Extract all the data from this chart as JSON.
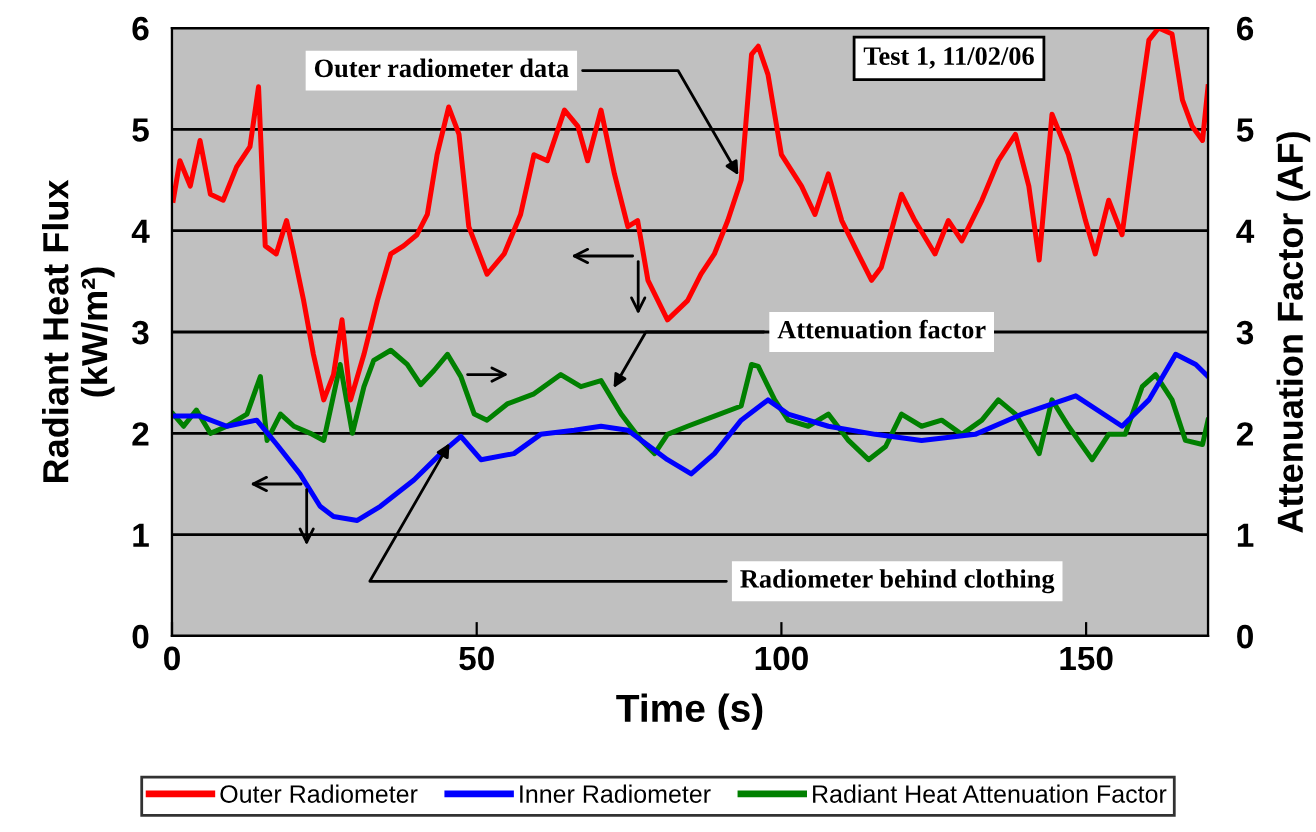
{
  "chart_data": {
    "type": "line",
    "xlabel": "Time (s)",
    "ylabel": "Radiant Heat Flux\n(kW/m²)",
    "y2label": "Attenuation Factor (AF)",
    "xlim": [
      0,
      170
    ],
    "xticks": [
      0,
      50,
      100,
      150
    ],
    "ylim": [
      0,
      6
    ],
    "yticks": [
      0,
      1,
      2,
      3,
      4,
      5,
      6
    ],
    "y2lim": [
      0,
      6
    ],
    "y2ticks": [
      0,
      1,
      2,
      3,
      4,
      5,
      6
    ],
    "grid": "y",
    "legend": "bottom",
    "marker": "none",
    "line_style": "solid",
    "annotations": [
      {
        "text": "Outer radiometer data",
        "x": 93.4,
        "y": 4.5
      },
      "Test 1, 11/02/06",
      {
        "text": "Attenuation factor",
        "x": 72,
        "y": 2.4
      },
      {
        "text": "Radiometer behind clothing",
        "x": 46,
        "y": 1.95
      }
    ],
    "series": [
      {
        "name": "Outer Radiometer",
        "color": "#ff0000",
        "x": [
          0.2,
          1.3,
          3,
          4.6,
          6.3,
          8.4,
          10.6,
          12.8,
          14.2,
          15.3,
          17.1,
          18.8,
          20,
          21.6,
          23.2,
          24.9,
          26.5,
          27.9,
          29.3,
          31.5,
          33.7,
          35.9,
          38,
          40.2,
          41.9,
          43.5,
          45.4,
          47.1,
          48.7,
          51.7,
          54.5,
          57.2,
          59.4,
          61.6,
          64.4,
          66.6,
          68.2,
          70.4,
          72.6,
          74.8,
          76.4,
          78.1,
          81.3,
          84.6,
          86.8,
          89,
          91.2,
          93.4,
          95.1,
          96.2,
          97.8,
          100,
          103.3,
          105.5,
          107.7,
          109.9,
          112.6,
          114.8,
          116.4,
          119.7,
          121.9,
          125.2,
          127.4,
          129.6,
          132.9,
          135.6,
          138.4,
          140.6,
          142.3,
          144.4,
          147.1,
          149.9,
          151.5,
          153.7,
          155.9,
          158.1,
          160.3,
          161.9,
          164.1,
          165.8,
          167.4,
          169.1,
          170
        ],
        "values": [
          4.3,
          4.69,
          4.44,
          4.89,
          4.36,
          4.3,
          4.63,
          4.83,
          5.42,
          3.85,
          3.77,
          4.1,
          3.77,
          3.31,
          2.78,
          2.33,
          2.58,
          3.12,
          2.33,
          2.78,
          3.31,
          3.77,
          3.85,
          3.96,
          4.16,
          4.75,
          5.22,
          4.95,
          4.04,
          3.57,
          3.77,
          4.16,
          4.75,
          4.69,
          5.19,
          5.03,
          4.69,
          5.19,
          4.56,
          4.04,
          4.1,
          3.51,
          3.12,
          3.31,
          3.57,
          3.77,
          4.1,
          4.5,
          5.74,
          5.82,
          5.54,
          4.75,
          4.44,
          4.16,
          4.56,
          4.1,
          3.77,
          3.51,
          3.64,
          4.36,
          4.1,
          3.77,
          4.1,
          3.9,
          4.3,
          4.69,
          4.95,
          4.44,
          3.71,
          5.15,
          4.75,
          4.1,
          3.77,
          4.3,
          3.96,
          4.95,
          5.88,
          6.0,
          5.94,
          5.29,
          5.03,
          4.89,
          5.42
        ]
      },
      {
        "name": "Inner Radiometer",
        "color": "#0000ff",
        "x": [
          0.2,
          4.6,
          9,
          13.9,
          17.2,
          21,
          24.3,
          26.5,
          30.4,
          34.2,
          39.7,
          44.1,
          47.4,
          50.7,
          56.1,
          60.5,
          66,
          70.4,
          74.8,
          81.3,
          85.2,
          89,
          93.4,
          97.8,
          101.1,
          107.7,
          115.4,
          123,
          131.8,
          139.5,
          148.3,
          155.9,
          160.3,
          164.7,
          168,
          170
        ],
        "values": [
          2.17,
          2.17,
          2.07,
          2.13,
          1.89,
          1.6,
          1.28,
          1.18,
          1.14,
          1.28,
          1.54,
          1.8,
          1.97,
          1.74,
          1.8,
          1.99,
          2.03,
          2.07,
          2.03,
          1.74,
          1.6,
          1.8,
          2.13,
          2.33,
          2.19,
          2.07,
          1.99,
          1.93,
          1.99,
          2.19,
          2.37,
          2.07,
          2.33,
          2.78,
          2.68,
          2.56
        ]
      },
      {
        "name": "Radiant Heat Attenuation Factor",
        "color": "#008000",
        "axis": "y2",
        "x": [
          0.2,
          1.9,
          4,
          6.3,
          9,
          12.3,
          14.5,
          15.6,
          17.8,
          20,
          22.7,
          24.9,
          27.6,
          29.6,
          31.5,
          33.1,
          35.9,
          38.6,
          40.8,
          43,
          45.2,
          47.4,
          49.6,
          51.7,
          55,
          59.4,
          63.8,
          67.1,
          70.4,
          73.7,
          77,
          79.2,
          81.3,
          84.6,
          89,
          93.4,
          95.1,
          96.2,
          98.9,
          101.1,
          104.4,
          107.7,
          111,
          114.3,
          117.1,
          119.7,
          123,
          126.3,
          129.6,
          132.9,
          135.6,
          138.4,
          142.3,
          144.4,
          147.1,
          151,
          153.7,
          156.4,
          159.2,
          161.4,
          164.1,
          166.3,
          169.1,
          170
        ],
        "values": [
          2.19,
          2.07,
          2.23,
          2.0,
          2.07,
          2.19,
          2.56,
          1.93,
          2.19,
          2.07,
          2.0,
          1.93,
          2.68,
          2.0,
          2.46,
          2.72,
          2.82,
          2.68,
          2.48,
          2.62,
          2.78,
          2.56,
          2.19,
          2.13,
          2.29,
          2.39,
          2.58,
          2.46,
          2.52,
          2.19,
          1.93,
          1.8,
          1.99,
          2.07,
          2.17,
          2.27,
          2.68,
          2.66,
          2.33,
          2.13,
          2.07,
          2.19,
          1.93,
          1.74,
          1.87,
          2.19,
          2.07,
          2.13,
          1.99,
          2.13,
          2.33,
          2.19,
          1.8,
          2.33,
          2.07,
          1.74,
          1.99,
          1.99,
          2.46,
          2.58,
          2.33,
          1.93,
          1.89,
          2.13
        ]
      }
    ]
  }
}
